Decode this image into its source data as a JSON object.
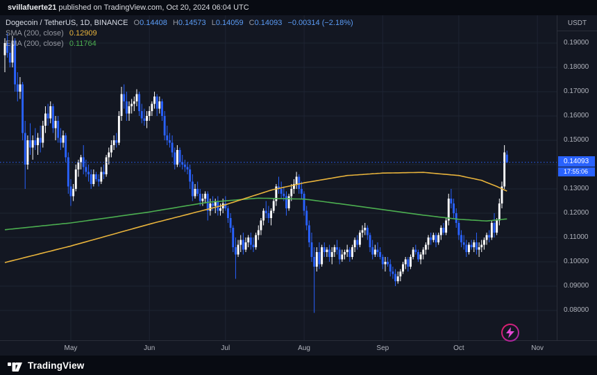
{
  "topbar": {
    "username": "svillafuerte21",
    "rest": "published on TradingView.com, Oct 20, 2024 06:04 UTC"
  },
  "legend": {
    "series_title": "Dogecoin / TetherUS, 1D, BINANCE",
    "o_label": "O",
    "o": "0.14408",
    "h_label": "H",
    "h": "0.14573",
    "l_label": "L",
    "l": "0.14059",
    "c_label": "C",
    "c": "0.14093",
    "change": "−0.00314 (−2.18%)",
    "sma_label": "SMA (200, close)",
    "sma_value": "0.12909",
    "ema_label": "EMA (200, close)",
    "ema_value": "0.11764"
  },
  "axis": {
    "currency": "USDT"
  },
  "price_tag": {
    "value": "0.14093",
    "countdown": "17:55:06"
  },
  "footer": {
    "brand": "TradingView"
  },
  "colors": {
    "up": "#ffffff",
    "down": "#2962ff",
    "grid": "#1e2433",
    "sma": "#e9b43c",
    "ema": "#4caf50",
    "price_line": "#2962ff",
    "tag_bg": "#2962ff"
  },
  "chart_data": {
    "type": "candlestick",
    "title": "Dogecoin / TetherUS",
    "interval": "1D",
    "exchange": "BINANCE",
    "quote_currency": "USDT",
    "current_price": 0.14093,
    "countdown": "17:55:06",
    "y_axis": {
      "min": 0.075,
      "max": 0.195,
      "ticks": [
        0.19,
        0.18,
        0.17,
        0.16,
        0.15,
        0.14,
        0.13,
        0.12,
        0.11,
        0.1,
        0.09,
        0.08
      ]
    },
    "x_axis": {
      "month_labels": [
        "May",
        "Jun",
        "Jul",
        "Aug",
        "Sep",
        "Oct",
        "Nov"
      ],
      "month_start_indices": [
        26,
        57,
        87,
        118,
        149,
        179,
        210
      ]
    },
    "candles": [
      [
        0.185,
        0.192,
        0.178,
        0.19
      ],
      [
        0.19,
        0.194,
        0.184,
        0.186
      ],
      [
        0.186,
        0.19,
        0.18,
        0.182
      ],
      [
        0.182,
        0.193,
        0.18,
        0.191
      ],
      [
        0.191,
        0.192,
        0.17,
        0.173
      ],
      [
        0.173,
        0.178,
        0.166,
        0.17
      ],
      [
        0.17,
        0.176,
        0.167,
        0.173
      ],
      [
        0.173,
        0.174,
        0.15,
        0.153
      ],
      [
        0.153,
        0.158,
        0.13,
        0.14
      ],
      [
        0.14,
        0.152,
        0.138,
        0.15
      ],
      [
        0.15,
        0.157,
        0.144,
        0.147
      ],
      [
        0.147,
        0.152,
        0.142,
        0.15
      ],
      [
        0.15,
        0.155,
        0.146,
        0.148
      ],
      [
        0.148,
        0.153,
        0.144,
        0.151
      ],
      [
        0.151,
        0.156,
        0.145,
        0.149
      ],
      [
        0.149,
        0.158,
        0.147,
        0.156
      ],
      [
        0.156,
        0.164,
        0.153,
        0.161
      ],
      [
        0.161,
        0.165,
        0.156,
        0.159
      ],
      [
        0.159,
        0.166,
        0.157,
        0.164
      ],
      [
        0.164,
        0.165,
        0.153,
        0.155
      ],
      [
        0.155,
        0.16,
        0.15,
        0.158
      ],
      [
        0.158,
        0.16,
        0.149,
        0.151
      ],
      [
        0.151,
        0.155,
        0.146,
        0.149
      ],
      [
        0.149,
        0.154,
        0.147,
        0.152
      ],
      [
        0.152,
        0.153,
        0.141,
        0.143
      ],
      [
        0.143,
        0.145,
        0.128,
        0.131
      ],
      [
        0.131,
        0.134,
        0.123,
        0.127
      ],
      [
        0.127,
        0.132,
        0.125,
        0.13
      ],
      [
        0.13,
        0.14,
        0.129,
        0.138
      ],
      [
        0.138,
        0.142,
        0.135,
        0.141
      ],
      [
        0.141,
        0.144,
        0.138,
        0.143
      ],
      [
        0.143,
        0.148,
        0.136,
        0.139
      ],
      [
        0.139,
        0.142,
        0.135,
        0.137
      ],
      [
        0.137,
        0.14,
        0.133,
        0.136
      ],
      [
        0.136,
        0.138,
        0.13,
        0.132
      ],
      [
        0.132,
        0.138,
        0.131,
        0.136
      ],
      [
        0.136,
        0.137,
        0.133,
        0.134
      ],
      [
        0.134,
        0.136,
        0.131,
        0.133
      ],
      [
        0.133,
        0.139,
        0.132,
        0.137
      ],
      [
        0.137,
        0.14,
        0.134,
        0.136
      ],
      [
        0.136,
        0.144,
        0.135,
        0.143
      ],
      [
        0.143,
        0.147,
        0.14,
        0.145
      ],
      [
        0.145,
        0.15,
        0.143,
        0.148
      ],
      [
        0.148,
        0.152,
        0.146,
        0.15
      ],
      [
        0.15,
        0.153,
        0.147,
        0.149
      ],
      [
        0.149,
        0.162,
        0.148,
        0.16
      ],
      [
        0.16,
        0.172,
        0.158,
        0.169
      ],
      [
        0.169,
        0.173,
        0.163,
        0.166
      ],
      [
        0.166,
        0.17,
        0.158,
        0.161
      ],
      [
        0.161,
        0.166,
        0.158,
        0.164
      ],
      [
        0.164,
        0.167,
        0.161,
        0.165
      ],
      [
        0.165,
        0.168,
        0.162,
        0.166
      ],
      [
        0.166,
        0.171,
        0.164,
        0.169
      ],
      [
        0.169,
        0.17,
        0.16,
        0.162
      ],
      [
        0.162,
        0.165,
        0.157,
        0.159
      ],
      [
        0.159,
        0.163,
        0.156,
        0.158
      ],
      [
        0.158,
        0.162,
        0.155,
        0.16
      ],
      [
        0.16,
        0.164,
        0.158,
        0.162
      ],
      [
        0.162,
        0.166,
        0.16,
        0.165
      ],
      [
        0.165,
        0.17,
        0.163,
        0.168
      ],
      [
        0.168,
        0.169,
        0.16,
        0.163
      ],
      [
        0.163,
        0.168,
        0.161,
        0.166
      ],
      [
        0.166,
        0.167,
        0.158,
        0.16
      ],
      [
        0.16,
        0.162,
        0.15,
        0.152
      ],
      [
        0.152,
        0.156,
        0.148,
        0.15
      ],
      [
        0.15,
        0.153,
        0.147,
        0.149
      ],
      [
        0.149,
        0.152,
        0.143,
        0.145
      ],
      [
        0.145,
        0.147,
        0.138,
        0.14
      ],
      [
        0.14,
        0.148,
        0.139,
        0.146
      ],
      [
        0.146,
        0.147,
        0.139,
        0.141
      ],
      [
        0.141,
        0.144,
        0.138,
        0.14
      ],
      [
        0.14,
        0.142,
        0.137,
        0.139
      ],
      [
        0.139,
        0.141,
        0.136,
        0.138
      ],
      [
        0.138,
        0.14,
        0.13,
        0.133
      ],
      [
        0.133,
        0.136,
        0.125,
        0.127
      ],
      [
        0.127,
        0.132,
        0.126,
        0.13
      ],
      [
        0.13,
        0.133,
        0.127,
        0.128
      ],
      [
        0.128,
        0.13,
        0.123,
        0.125
      ],
      [
        0.125,
        0.128,
        0.123,
        0.126
      ],
      [
        0.126,
        0.129,
        0.124,
        0.128
      ],
      [
        0.128,
        0.129,
        0.117,
        0.121
      ],
      [
        0.121,
        0.126,
        0.119,
        0.124
      ],
      [
        0.124,
        0.127,
        0.121,
        0.123
      ],
      [
        0.123,
        0.126,
        0.12,
        0.125
      ],
      [
        0.125,
        0.127,
        0.119,
        0.121
      ],
      [
        0.121,
        0.124,
        0.119,
        0.122
      ],
      [
        0.122,
        0.126,
        0.12,
        0.124
      ],
      [
        0.124,
        0.127,
        0.121,
        0.122
      ],
      [
        0.122,
        0.123,
        0.116,
        0.118
      ],
      [
        0.118,
        0.12,
        0.112,
        0.114
      ],
      [
        0.114,
        0.115,
        0.104,
        0.106
      ],
      [
        0.106,
        0.11,
        0.093,
        0.103
      ],
      [
        0.103,
        0.109,
        0.102,
        0.107
      ],
      [
        0.107,
        0.111,
        0.104,
        0.109
      ],
      [
        0.109,
        0.112,
        0.103,
        0.105
      ],
      [
        0.105,
        0.11,
        0.104,
        0.108
      ],
      [
        0.108,
        0.111,
        0.106,
        0.11
      ],
      [
        0.11,
        0.112,
        0.105,
        0.107
      ],
      [
        0.107,
        0.11,
        0.104,
        0.106
      ],
      [
        0.106,
        0.112,
        0.105,
        0.111
      ],
      [
        0.111,
        0.115,
        0.109,
        0.113
      ],
      [
        0.113,
        0.118,
        0.111,
        0.117
      ],
      [
        0.117,
        0.122,
        0.115,
        0.121
      ],
      [
        0.121,
        0.125,
        0.118,
        0.12
      ],
      [
        0.12,
        0.123,
        0.116,
        0.118
      ],
      [
        0.118,
        0.122,
        0.115,
        0.121
      ],
      [
        0.121,
        0.126,
        0.12,
        0.125
      ],
      [
        0.125,
        0.132,
        0.123,
        0.131
      ],
      [
        0.131,
        0.135,
        0.128,
        0.13
      ],
      [
        0.13,
        0.133,
        0.126,
        0.128
      ],
      [
        0.128,
        0.131,
        0.125,
        0.127
      ],
      [
        0.127,
        0.129,
        0.119,
        0.122
      ],
      [
        0.122,
        0.128,
        0.121,
        0.127
      ],
      [
        0.127,
        0.132,
        0.125,
        0.13
      ],
      [
        0.13,
        0.134,
        0.128,
        0.132
      ],
      [
        0.132,
        0.137,
        0.13,
        0.135
      ],
      [
        0.135,
        0.136,
        0.128,
        0.13
      ],
      [
        0.13,
        0.133,
        0.126,
        0.128
      ],
      [
        0.128,
        0.129,
        0.119,
        0.121
      ],
      [
        0.121,
        0.123,
        0.113,
        0.115
      ],
      [
        0.115,
        0.117,
        0.106,
        0.108
      ],
      [
        0.108,
        0.112,
        0.1,
        0.102
      ],
      [
        0.102,
        0.106,
        0.079,
        0.098
      ],
      [
        0.098,
        0.106,
        0.096,
        0.104
      ],
      [
        0.104,
        0.108,
        0.097,
        0.099
      ],
      [
        0.099,
        0.107,
        0.098,
        0.106
      ],
      [
        0.106,
        0.108,
        0.102,
        0.104
      ],
      [
        0.104,
        0.106,
        0.102,
        0.105
      ],
      [
        0.105,
        0.107,
        0.1,
        0.102
      ],
      [
        0.102,
        0.106,
        0.099,
        0.104
      ],
      [
        0.104,
        0.107,
        0.102,
        0.106
      ],
      [
        0.106,
        0.109,
        0.103,
        0.105
      ],
      [
        0.105,
        0.106,
        0.099,
        0.101
      ],
      [
        0.101,
        0.105,
        0.1,
        0.103
      ],
      [
        0.103,
        0.105,
        0.101,
        0.104
      ],
      [
        0.104,
        0.107,
        0.102,
        0.105
      ],
      [
        0.105,
        0.106,
        0.1,
        0.102
      ],
      [
        0.102,
        0.107,
        0.101,
        0.106
      ],
      [
        0.106,
        0.11,
        0.104,
        0.109
      ],
      [
        0.109,
        0.111,
        0.105,
        0.107
      ],
      [
        0.107,
        0.113,
        0.106,
        0.112
      ],
      [
        0.112,
        0.115,
        0.11,
        0.113
      ],
      [
        0.113,
        0.116,
        0.111,
        0.114
      ],
      [
        0.114,
        0.115,
        0.109,
        0.111
      ],
      [
        0.111,
        0.112,
        0.104,
        0.106
      ],
      [
        0.106,
        0.109,
        0.101,
        0.103
      ],
      [
        0.103,
        0.107,
        0.102,
        0.105
      ],
      [
        0.105,
        0.108,
        0.102,
        0.104
      ],
      [
        0.104,
        0.106,
        0.101,
        0.102
      ],
      [
        0.102,
        0.103,
        0.097,
        0.099
      ],
      [
        0.099,
        0.102,
        0.096,
        0.1
      ],
      [
        0.1,
        0.102,
        0.098,
        0.099
      ],
      [
        0.099,
        0.101,
        0.094,
        0.096
      ],
      [
        0.096,
        0.098,
        0.093,
        0.095
      ],
      [
        0.095,
        0.097,
        0.09,
        0.092
      ],
      [
        0.092,
        0.096,
        0.091,
        0.094
      ],
      [
        0.094,
        0.097,
        0.092,
        0.096
      ],
      [
        0.096,
        0.1,
        0.095,
        0.099
      ],
      [
        0.099,
        0.102,
        0.097,
        0.101
      ],
      [
        0.101,
        0.102,
        0.096,
        0.098
      ],
      [
        0.098,
        0.103,
        0.097,
        0.102
      ],
      [
        0.102,
        0.106,
        0.101,
        0.105
      ],
      [
        0.105,
        0.107,
        0.103,
        0.104
      ],
      [
        0.104,
        0.105,
        0.1,
        0.101
      ],
      [
        0.101,
        0.104,
        0.099,
        0.103
      ],
      [
        0.103,
        0.106,
        0.101,
        0.105
      ],
      [
        0.105,
        0.108,
        0.103,
        0.107
      ],
      [
        0.107,
        0.111,
        0.105,
        0.11
      ],
      [
        0.11,
        0.112,
        0.107,
        0.109
      ],
      [
        0.109,
        0.112,
        0.108,
        0.111
      ],
      [
        0.111,
        0.112,
        0.106,
        0.108
      ],
      [
        0.108,
        0.112,
        0.107,
        0.111
      ],
      [
        0.111,
        0.115,
        0.109,
        0.114
      ],
      [
        0.114,
        0.116,
        0.111,
        0.112
      ],
      [
        0.112,
        0.118,
        0.111,
        0.117
      ],
      [
        0.117,
        0.128,
        0.115,
        0.126
      ],
      [
        0.126,
        0.13,
        0.122,
        0.124
      ],
      [
        0.124,
        0.126,
        0.118,
        0.12
      ],
      [
        0.12,
        0.122,
        0.114,
        0.116
      ],
      [
        0.116,
        0.117,
        0.109,
        0.111
      ],
      [
        0.111,
        0.113,
        0.106,
        0.108
      ],
      [
        0.108,
        0.111,
        0.105,
        0.107
      ],
      [
        0.107,
        0.109,
        0.102,
        0.104
      ],
      [
        0.104,
        0.108,
        0.103,
        0.107
      ],
      [
        0.107,
        0.109,
        0.105,
        0.106
      ],
      [
        0.106,
        0.109,
        0.104,
        0.108
      ],
      [
        0.108,
        0.112,
        0.103,
        0.105
      ],
      [
        0.105,
        0.108,
        0.102,
        0.106
      ],
      [
        0.106,
        0.109,
        0.104,
        0.107
      ],
      [
        0.107,
        0.11,
        0.105,
        0.109
      ],
      [
        0.109,
        0.112,
        0.107,
        0.111
      ],
      [
        0.111,
        0.113,
        0.108,
        0.11
      ],
      [
        0.11,
        0.117,
        0.109,
        0.116
      ],
      [
        0.116,
        0.12,
        0.11,
        0.112
      ],
      [
        0.112,
        0.118,
        0.111,
        0.117
      ],
      [
        0.117,
        0.126,
        0.115,
        0.124
      ],
      [
        0.124,
        0.133,
        0.122,
        0.131
      ],
      [
        0.131,
        0.148,
        0.13,
        0.145
      ],
      [
        0.14408,
        0.14573,
        0.14059,
        0.14093
      ]
    ],
    "overlays": [
      {
        "name": "SMA 200",
        "value": 0.12909,
        "points": [
          [
            0,
            0.0997
          ],
          [
            26,
            0.1065
          ],
          [
            57,
            0.1155
          ],
          [
            87,
            0.1235
          ],
          [
            105,
            0.1295
          ],
          [
            118,
            0.1325
          ],
          [
            135,
            0.1355
          ],
          [
            149,
            0.1365
          ],
          [
            165,
            0.1368
          ],
          [
            179,
            0.1355
          ],
          [
            188,
            0.1335
          ],
          [
            194,
            0.131
          ],
          [
            198,
            0.12909
          ]
        ]
      },
      {
        "name": "EMA 200",
        "value": 0.11764,
        "points": [
          [
            0,
            0.1132
          ],
          [
            26,
            0.116
          ],
          [
            57,
            0.1205
          ],
          [
            80,
            0.1245
          ],
          [
            100,
            0.1262
          ],
          [
            118,
            0.1258
          ],
          [
            135,
            0.1235
          ],
          [
            149,
            0.1215
          ],
          [
            165,
            0.1192
          ],
          [
            179,
            0.1175
          ],
          [
            190,
            0.1168
          ],
          [
            198,
            0.11764
          ]
        ]
      }
    ]
  }
}
